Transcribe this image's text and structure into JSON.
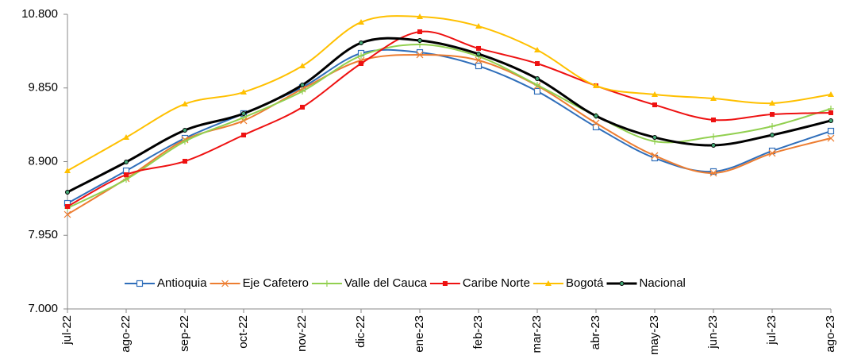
{
  "chart_data": {
    "type": "line",
    "categories": [
      "jul-22",
      "ago-22",
      "sep-22",
      "oct-22",
      "nov-22",
      "dic-22",
      "ene-23",
      "feb-23",
      "mar-23",
      "abr-23",
      "may-23",
      "jun-23",
      "jul-23",
      "ago-23"
    ],
    "ylim": [
      7000,
      10800
    ],
    "yticks": [
      {
        "value": 7000,
        "label": "7.000"
      },
      {
        "value": 7950,
        "label": "7.950"
      },
      {
        "value": 8900,
        "label": "8.900"
      },
      {
        "value": 9850,
        "label": "9.850"
      },
      {
        "value": 10800,
        "label": "10.800"
      }
    ],
    "grid": false,
    "legend": "bottom",
    "smooth": true,
    "series": [
      {
        "name": "Antioquia",
        "color": "#2f6eba",
        "marker": "square-open",
        "values": [
          8362,
          8782,
          9202,
          9520,
          9858,
          10298,
          10308,
          10134,
          9807,
          9346,
          8946,
          8772,
          9038,
          9294
        ]
      },
      {
        "name": "Eje Cafetero",
        "color": "#ed7d31",
        "marker": "x",
        "values": [
          8219,
          8680,
          9182,
          9428,
          9837,
          10206,
          10278,
          10206,
          9878,
          9397,
          8977,
          8752,
          9008,
          9202
        ]
      },
      {
        "name": "Valle del Cauca",
        "color": "#92d050",
        "marker": "plus",
        "values": [
          8301,
          8670,
          9161,
          9469,
          9807,
          10267,
          10411,
          10257,
          9888,
          9489,
          9161,
          9223,
          9356,
          9581
        ]
      },
      {
        "name": "Caribe Norte",
        "color": "#ee1111",
        "marker": "square",
        "values": [
          8321,
          8731,
          8905,
          9243,
          9602,
          10165,
          10575,
          10360,
          10165,
          9878,
          9632,
          9438,
          9509,
          9530
        ]
      },
      {
        "name": "Bogotá",
        "color": "#ffc000",
        "marker": "triangle",
        "values": [
          8782,
          9212,
          9643,
          9796,
          10134,
          10698,
          10769,
          10646,
          10339,
          9878,
          9766,
          9714,
          9653,
          9766
        ]
      },
      {
        "name": "Nacional",
        "color": "#000000",
        "marker": "circle",
        "width": 3,
        "values": [
          8506,
          8895,
          9305,
          9520,
          9888,
          10431,
          10462,
          10288,
          9970,
          9489,
          9212,
          9110,
          9243,
          9428
        ]
      }
    ]
  }
}
